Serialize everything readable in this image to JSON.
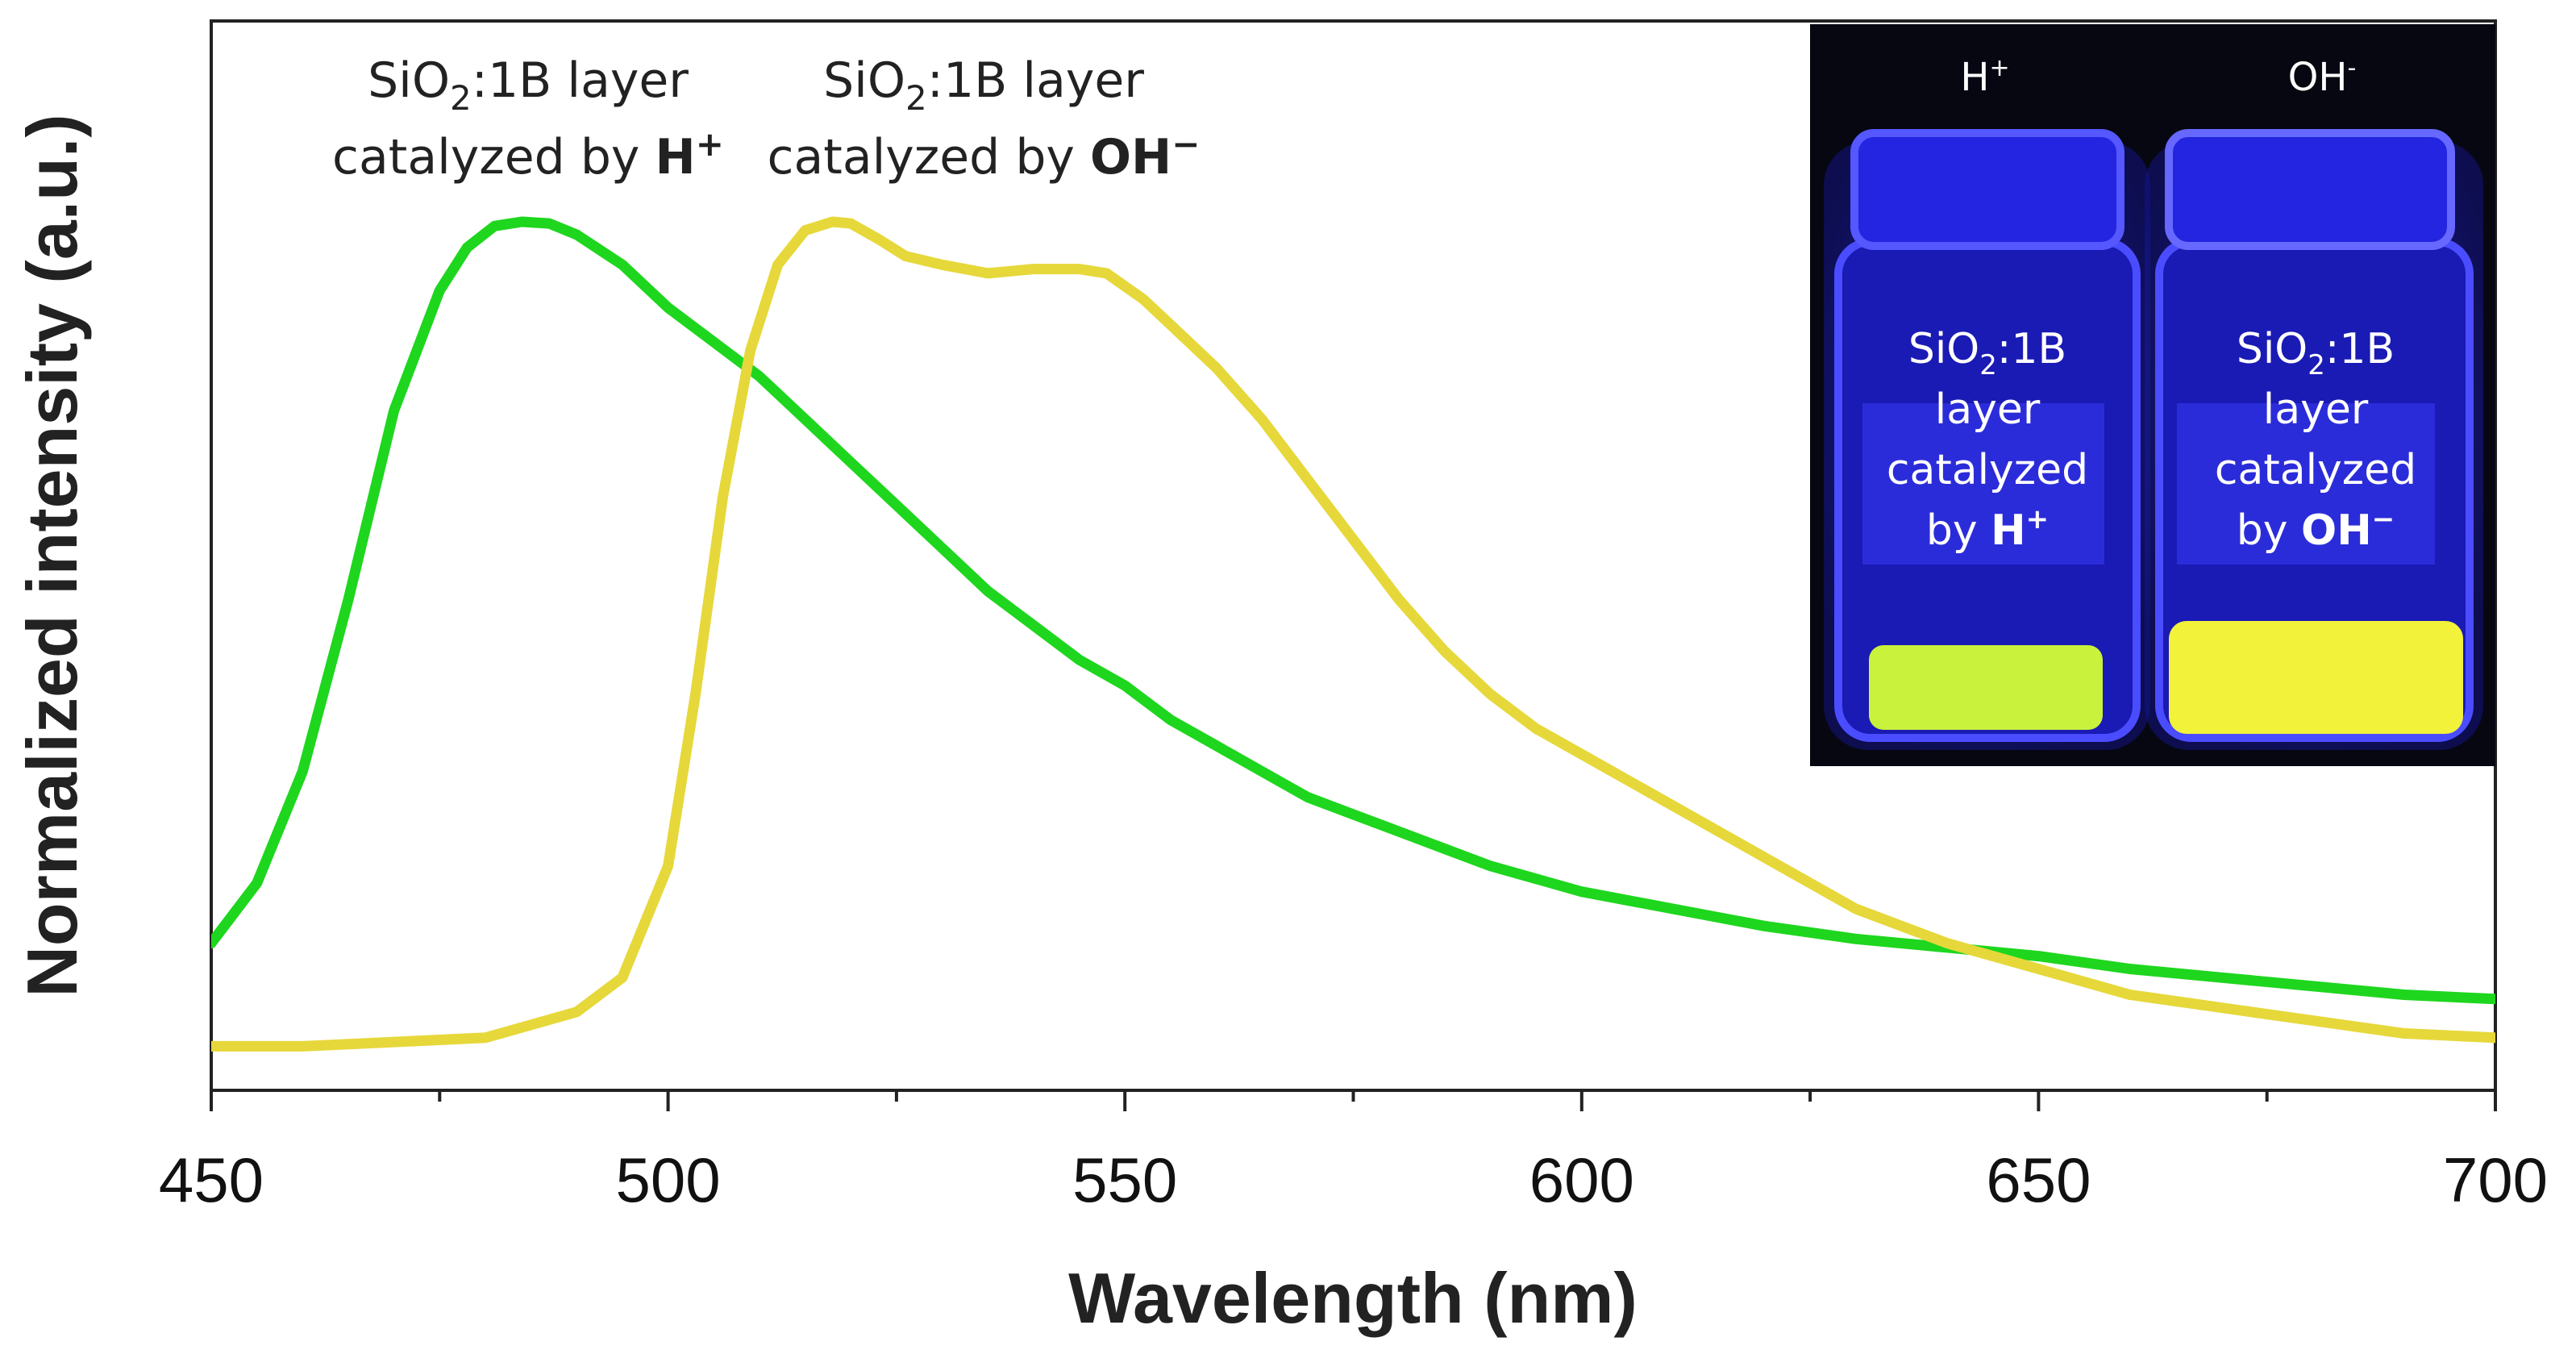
{
  "chart_data": {
    "type": "line",
    "xlabel": "Wavelength (nm)",
    "ylabel": "Normalized intensity (a.u.)",
    "xlim": [
      450,
      700
    ],
    "ylim": [
      0,
      1.05
    ],
    "x_ticks": [
      "450",
      "500",
      "550",
      "600",
      "650",
      "700"
    ],
    "grid": false,
    "series": [
      {
        "name_prefix": "SiO",
        "name_sub": "2",
        "name_mid": ":1B layer",
        "name_line2": "catalyzed by ",
        "name_bold": "H",
        "name_sup": "+",
        "color": "#1ed61e",
        "x": [
          450,
          455,
          460,
          465,
          470,
          475,
          478,
          481,
          484,
          487,
          490,
          495,
          500,
          505,
          510,
          515,
          520,
          525,
          530,
          535,
          540,
          545,
          550,
          555,
          560,
          565,
          570,
          575,
          580,
          585,
          590,
          595,
          600,
          610,
          620,
          630,
          640,
          650,
          660,
          670,
          680,
          690,
          700
        ],
        "y": [
          0.16,
          0.23,
          0.36,
          0.56,
          0.78,
          0.92,
          0.97,
          0.995,
          1.0,
          0.998,
          0.985,
          0.95,
          0.9,
          0.86,
          0.82,
          0.77,
          0.72,
          0.67,
          0.62,
          0.57,
          0.53,
          0.49,
          0.46,
          0.42,
          0.39,
          0.36,
          0.33,
          0.31,
          0.29,
          0.27,
          0.25,
          0.235,
          0.22,
          0.2,
          0.18,
          0.165,
          0.155,
          0.145,
          0.13,
          0.12,
          0.11,
          0.1,
          0.095
        ]
      },
      {
        "name_prefix": "SiO",
        "name_sub": "2",
        "name_mid": ":1B layer",
        "name_line2": "catalyzed by ",
        "name_bold": "OH",
        "name_sup": "−",
        "color": "#e6d83a",
        "x": [
          450,
          460,
          470,
          480,
          490,
          495,
          500,
          503,
          506,
          509,
          512,
          515,
          518,
          520,
          523,
          526,
          530,
          535,
          540,
          545,
          548,
          552,
          555,
          560,
          565,
          570,
          575,
          580,
          585,
          590,
          595,
          600,
          610,
          620,
          630,
          640,
          650,
          660,
          670,
          680,
          690,
          700
        ],
        "y": [
          0.04,
          0.04,
          0.045,
          0.05,
          0.08,
          0.12,
          0.25,
          0.45,
          0.68,
          0.85,
          0.95,
          0.99,
          1.0,
          0.998,
          0.98,
          0.96,
          0.95,
          0.94,
          0.945,
          0.945,
          0.94,
          0.91,
          0.88,
          0.83,
          0.77,
          0.7,
          0.63,
          0.56,
          0.5,
          0.45,
          0.41,
          0.38,
          0.32,
          0.26,
          0.2,
          0.16,
          0.13,
          0.1,
          0.085,
          0.07,
          0.055,
          0.05
        ]
      }
    ]
  },
  "inset": {
    "label_left": "H",
    "label_left_sup": "+",
    "label_right": "OH",
    "label_right_sup": "-",
    "vial_left": {
      "line1_prefix": "SiO",
      "line1_sub": "2",
      "line1_suffix": ":1B",
      "line2": "layer",
      "line3": "catalyzed",
      "line4_prefix": "by ",
      "line4_bold": "H",
      "line4_sup": "+"
    },
    "vial_right": {
      "line1_prefix": "SiO",
      "line1_sub": "2",
      "line1_suffix": ":1B",
      "line2": "layer",
      "line3": "catalyzed",
      "line4_prefix": "by ",
      "line4_bold": "OH",
      "line4_sup": "−"
    }
  },
  "colors": {
    "inset_background": "#070712",
    "vial_glow": "#2a2cf5",
    "vial_body": "#1616a8",
    "liquid_left": "#c8f23c",
    "liquid_right": "#f2f23a"
  }
}
